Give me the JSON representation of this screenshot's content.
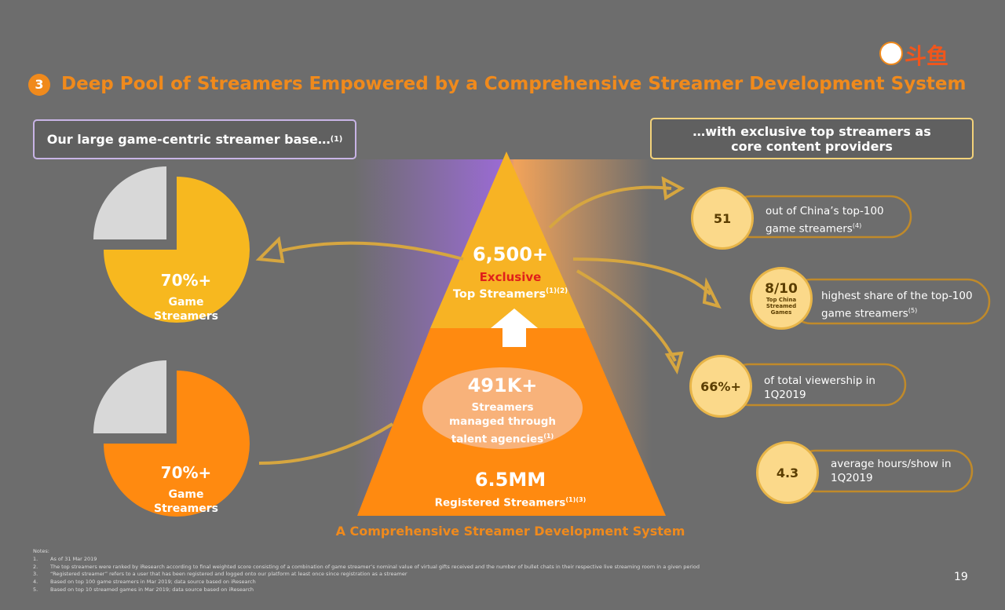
{
  "logo": "斗鱼",
  "header": {
    "number": "3",
    "title": "Deep Pool of Streamers Empowered by a Comprehensive Streamer Development System"
  },
  "left_box": {
    "text": "Our large game-centric streamer base…",
    "sup": "(1)"
  },
  "right_box": {
    "text": "…with exclusive top streamers as core content providers"
  },
  "pies": [
    {
      "value": "70%+",
      "line1": "Game",
      "line2": "Streamers"
    },
    {
      "value": "70%+",
      "line1": "Game",
      "line2": "Streamers"
    }
  ],
  "pyramid": {
    "top": {
      "value": "6,500+",
      "highlight": "Exclusive",
      "text": "Top Streamers",
      "sup": "(1)(2)"
    },
    "middle": {
      "value": "491K+",
      "text": "Streamers managed through talent agencies",
      "sup": "(1)"
    },
    "bottom": {
      "value": "6.5MM",
      "text": "Registered Streamers",
      "sup": "(1)(3)"
    },
    "caption": "A Comprehensive Streamer Development System"
  },
  "stats": [
    {
      "value": "51",
      "text": "out of China’s top-100 game streamers",
      "sup": "(4)"
    },
    {
      "value": "8/10",
      "sub": "Top China Streamed Games",
      "text": "highest share of the top-100 game streamers",
      "sup": "(5)"
    },
    {
      "value": "66%+",
      "text": "of total viewership in 1Q2019"
    },
    {
      "value": "4.3",
      "text": "average hours/show in 1Q2019"
    }
  ],
  "notes": {
    "title": "Notes:",
    "items": [
      {
        "number": "1.",
        "text": "As of 31 Mar 2019"
      },
      {
        "number": "2.",
        "text": "The top streamers were ranked by iResearch according to final weighted score consisting of a combination of game streamer’s nominal value of virtual gifts received and the number of bullet chats in their respective live streaming room in a given period"
      },
      {
        "number": "3.",
        "text": "“Registered streamer” refers to a user that has been registered and logged onto our platform at least once since registration as a streamer"
      },
      {
        "number": "4.",
        "text": "Based on top 100 game streamers in Mar 2019; data source based on iResearch"
      },
      {
        "number": "5.",
        "text": "Based on top 10 streamed games in Mar 2019; data source based on iResearch"
      }
    ]
  },
  "page_number": "19"
}
